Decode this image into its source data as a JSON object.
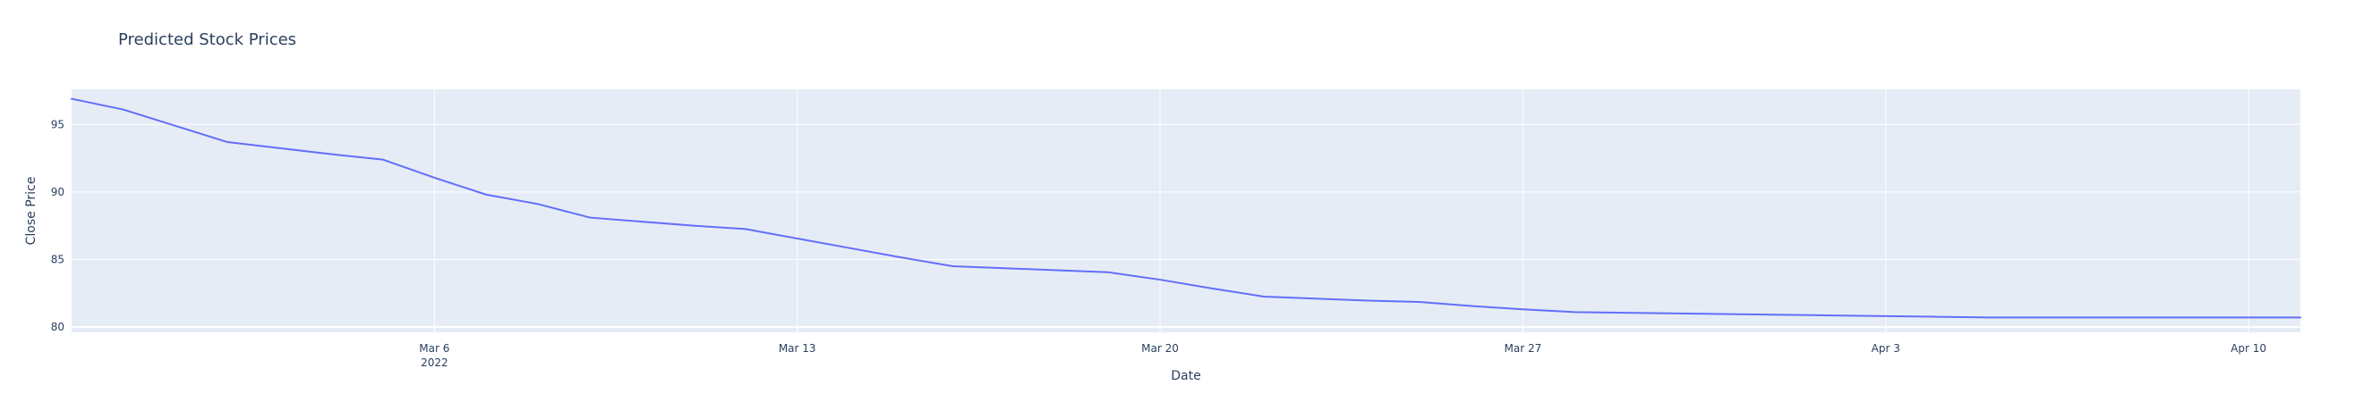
{
  "chart_data": {
    "type": "line",
    "title": "Predicted Stock Prices",
    "xlabel": "Date",
    "ylabel": "Close Price",
    "xlim": [
      "2022-02-27",
      "2022-04-11"
    ],
    "ylim": [
      79.6,
      97.6
    ],
    "grid": true,
    "legend": "none",
    "x_ticks": [
      {
        "date": "2022-03-06",
        "label": "Mar 6",
        "sublabel": "2022"
      },
      {
        "date": "2022-03-13",
        "label": "Mar 13"
      },
      {
        "date": "2022-03-20",
        "label": "Mar 20"
      },
      {
        "date": "2022-03-27",
        "label": "Mar 27"
      },
      {
        "date": "2022-04-03",
        "label": "Apr 3"
      },
      {
        "date": "2022-04-10",
        "label": "Apr 10"
      }
    ],
    "y_ticks": [
      80,
      85,
      90,
      95
    ],
    "series": [
      {
        "color": "#636efa",
        "x": [
          "2022-02-27",
          "2022-02-28",
          "2022-03-01",
          "2022-03-02",
          "2022-03-03",
          "2022-03-04",
          "2022-03-05",
          "2022-03-06",
          "2022-03-07",
          "2022-03-08",
          "2022-03-09",
          "2022-03-10",
          "2022-03-11",
          "2022-03-12",
          "2022-03-13",
          "2022-03-14",
          "2022-03-15",
          "2022-03-16",
          "2022-03-17",
          "2022-03-18",
          "2022-03-19",
          "2022-03-20",
          "2022-03-21",
          "2022-03-22",
          "2022-03-23",
          "2022-03-24",
          "2022-03-25",
          "2022-03-26",
          "2022-03-27",
          "2022-03-28",
          "2022-03-29",
          "2022-03-30",
          "2022-03-31",
          "2022-04-01",
          "2022-04-02",
          "2022-04-03",
          "2022-04-04",
          "2022-04-05",
          "2022-04-06",
          "2022-04-07",
          "2022-04-08",
          "2022-04-09",
          "2022-04-10",
          "2022-04-11"
        ],
        "y": [
          96.9,
          96.1,
          94.9,
          93.7,
          93.25,
          92.8,
          92.4,
          91.05,
          89.8,
          89.1,
          88.1,
          87.8,
          87.5,
          87.25,
          86.55,
          85.85,
          85.15,
          84.5,
          84.35,
          84.2,
          84.05,
          83.5,
          82.85,
          82.25,
          82.1,
          81.95,
          81.85,
          81.55,
          81.3,
          81.1,
          81.05,
          81.0,
          80.95,
          80.9,
          80.85,
          80.8,
          80.75,
          80.7,
          80.7,
          80.7,
          80.7,
          80.7,
          80.7,
          80.7
        ]
      }
    ]
  }
}
